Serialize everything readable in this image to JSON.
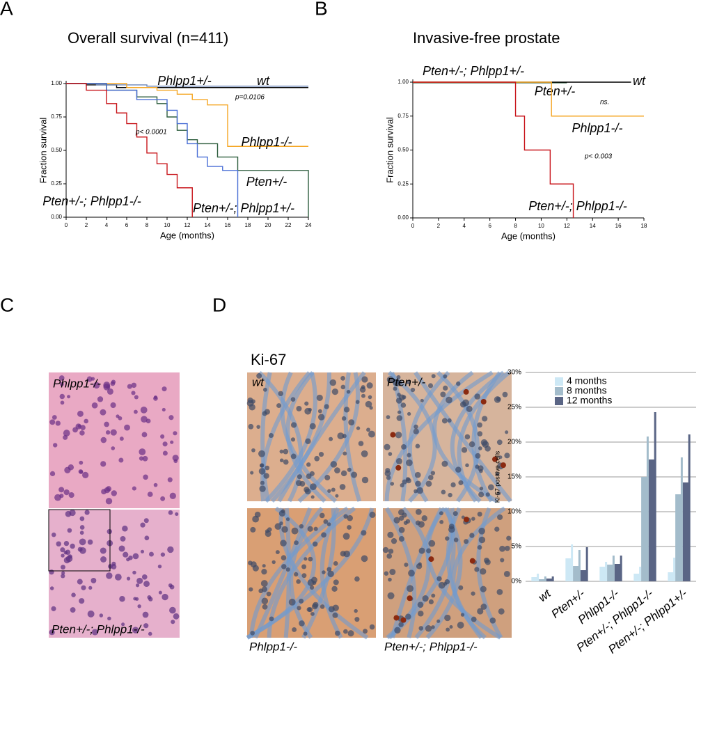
{
  "panel_labels": [
    "A",
    "B",
    "C",
    "D"
  ],
  "micrographs": {
    "C": {
      "labels": [
        "Phlpp1-/-",
        "Pten+/-; Phlpp1-/-"
      ]
    },
    "D": {
      "title": "Ki-67",
      "labels": [
        "wt",
        "Pten+/-",
        "Phlpp1-/-",
        "Pten+/-; Phlpp1-/-"
      ]
    }
  },
  "chart_data": [
    {
      "type": "step",
      "title": "Overall survival (n=411)",
      "xlabel": "Age (months)",
      "ylabel": "Fraction survival",
      "xlim": [
        0,
        24
      ],
      "ylim": [
        0,
        1
      ],
      "xticks": [
        0,
        2,
        4,
        6,
        8,
        10,
        12,
        14,
        16,
        18,
        20,
        22,
        24
      ],
      "yticks": [
        {
          "value": 0,
          "label": "0.00"
        },
        {
          "value": 0.25,
          "label": "0.25"
        },
        {
          "value": 0.5,
          "label": "0.50"
        },
        {
          "value": 0.75,
          "label": "0.75"
        },
        {
          "value": 1,
          "label": "1.00"
        }
      ],
      "annotations": [
        "p=0.0106",
        "p< 0.0001"
      ],
      "series": [
        {
          "name": "wt",
          "color": "#000000",
          "x": [
            0,
            2,
            5,
            24
          ],
          "values": [
            1,
            0.99,
            0.97,
            0.97
          ]
        },
        {
          "name": "Phlpp1+/-",
          "color": "#6b86b8",
          "x": [
            0,
            3,
            8,
            24
          ],
          "values": [
            1,
            0.99,
            0.98,
            0.98
          ]
        },
        {
          "name": "Phlpp1-/-",
          "color": "#f5a623",
          "x": [
            0,
            6,
            9,
            11,
            12.5,
            14,
            16,
            24
          ],
          "values": [
            1,
            0.97,
            0.95,
            0.92,
            0.88,
            0.84,
            0.53,
            0.53
          ]
        },
        {
          "name": "Pten+/-",
          "color": "#2e5e3e",
          "x": [
            0,
            4,
            7,
            9,
            10,
            11,
            12,
            13,
            15,
            17,
            24
          ],
          "values": [
            1,
            0.95,
            0.9,
            0.85,
            0.75,
            0.65,
            0.58,
            0.55,
            0.45,
            0.35,
            0
          ]
        },
        {
          "name": "Pten+/-; Phlpp1+/-",
          "color": "#4a6fd6",
          "x": [
            0,
            4,
            7,
            10,
            11,
            12,
            13,
            14,
            15.5,
            17
          ],
          "values": [
            1,
            0.95,
            0.88,
            0.8,
            0.7,
            0.55,
            0.45,
            0.38,
            0.35,
            0
          ]
        },
        {
          "name": "Pten+/-; Phlpp1-/-",
          "color": "#c8141a",
          "x": [
            0,
            2,
            4,
            5,
            6,
            7,
            8,
            9,
            10,
            11,
            12.5
          ],
          "values": [
            1,
            0.95,
            0.85,
            0.78,
            0.7,
            0.6,
            0.48,
            0.4,
            0.32,
            0.22,
            0
          ]
        }
      ]
    },
    {
      "type": "step",
      "title": "Invasive-free prostate",
      "xlabel": "Age (months)",
      "ylabel": "Fraction survival",
      "xlim": [
        0,
        18
      ],
      "ylim": [
        0,
        1
      ],
      "xticks": [
        0,
        2,
        4,
        6,
        8,
        10,
        12,
        14,
        16,
        18
      ],
      "yticks": [
        {
          "value": 0,
          "label": "0.00"
        },
        {
          "value": 0.25,
          "label": "0.25"
        },
        {
          "value": 0.5,
          "label": "0.50"
        },
        {
          "value": 0.75,
          "label": "0.75"
        },
        {
          "value": 1,
          "label": "1.00"
        }
      ],
      "annotations": [
        "ns.",
        "p< 0.003"
      ],
      "series": [
        {
          "name": "Pten+/-; Phlpp1+/-",
          "color": "#2e5e3e",
          "x": [
            0,
            12
          ],
          "values": [
            0.995,
            0.995
          ]
        },
        {
          "name": "wt",
          "color": "#000000",
          "x": [
            0,
            17
          ],
          "values": [
            1,
            1
          ]
        },
        {
          "name": "Pten+/-",
          "color": "#999999",
          "x": [
            0,
            10.8
          ],
          "values": [
            1,
            1
          ]
        },
        {
          "name": "Phlpp1-/-",
          "color": "#f5a623",
          "x": [
            0,
            10.8,
            18
          ],
          "values": [
            1,
            0.75,
            0.75
          ]
        },
        {
          "name": "Pten+/-; Phlpp1-/-",
          "color": "#c8141a",
          "x": [
            0,
            8,
            8.7,
            10.7,
            12.5
          ],
          "values": [
            1,
            0.75,
            0.5,
            0.25,
            0
          ]
        }
      ]
    },
    {
      "type": "bar",
      "ylabel": "Ki-67 positive cells",
      "categories": [
        "wt",
        "Pten+/-",
        "Phlpp1-/-",
        "Pten+/-; Phlpp1-/-",
        "Pten+/-; Phlpp1+/-"
      ],
      "ylim": [
        0,
        30
      ],
      "yticks": [
        {
          "value": 0,
          "label": "0%"
        },
        {
          "value": 5,
          "label": "5%"
        },
        {
          "value": 10,
          "label": "10%"
        },
        {
          "value": 15,
          "label": "15%"
        },
        {
          "value": 20,
          "label": "20%"
        },
        {
          "value": 25,
          "label": "25%"
        },
        {
          "value": 30,
          "label": "30%"
        }
      ],
      "grid": true,
      "series": [
        {
          "name": "4 months",
          "color": "#cde8f5",
          "values": [
            0.6,
            3.3,
            2.1,
            1.1,
            1.3
          ],
          "errors": [
            0.5,
            2,
            0.7,
            1,
            2.1
          ]
        },
        {
          "name": "8 months",
          "color": "#a3bccb",
          "values": [
            0.3,
            2.2,
            2.4,
            15,
            12.5
          ],
          "errors": [
            0.4,
            2.3,
            1.3,
            5.8,
            5.3
          ]
        },
        {
          "name": "12 months",
          "color": "#5a6585",
          "values": [
            0.4,
            1.6,
            2.5,
            17.5,
            14.2
          ],
          "errors": [
            0.3,
            3.3,
            1.2,
            6.8,
            6.9
          ]
        }
      ]
    }
  ]
}
